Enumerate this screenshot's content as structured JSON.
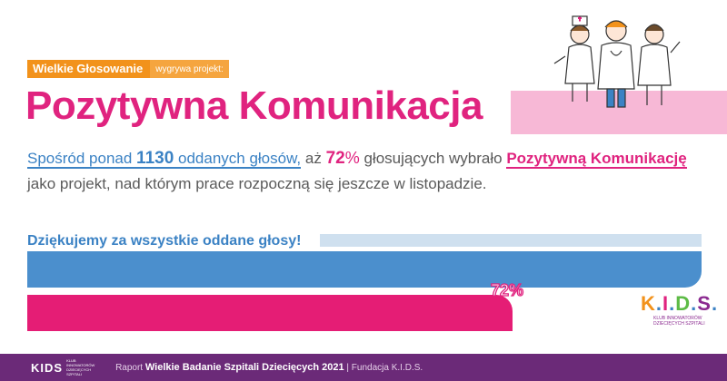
{
  "tag": {
    "strong": "Wielkie Głosowanie",
    "light": "wygrywa projekt:"
  },
  "title": "Pozytywna Komunikacja",
  "paragraph": {
    "p1": "Spośród ponad ",
    "count": "1130",
    "p2": " oddanych głosów,",
    "p3": " aż ",
    "percent": "72",
    "percent_sym": "%",
    "p4": " głosujących wybrało ",
    "highlight": "Pozytywną Komunikację",
    "p5": "jako projekt, nad którym prace rozpoczną się jeszcze w listopadzie."
  },
  "thanks": "Dziękujemy za wszystkie oddane głosy!",
  "progress": {
    "value": 72,
    "label": "72",
    "sym": "%"
  },
  "brand": {
    "k": "K",
    "i": "I",
    "d": "D",
    "s": "S",
    "subline": "KLUB INNOWATORÓW DZIECIĘCYCH SZPITALI"
  },
  "footer": {
    "logo": "KIDS",
    "logo_sub": "KLUB INNOWATORÓW DZIECIĘCYCH SZPITALI",
    "prefix": "Raport ",
    "report": "Wielkie Badanie Szpitali Dziecięcych 2021",
    "suffix": " | Fundacja K.I.D.S."
  },
  "colors": {
    "pink": "#e0237f",
    "blue": "#3b82c4",
    "orange": "#f2921b",
    "purple": "#6b2a78"
  },
  "illustration": "three-doctors-illustration"
}
